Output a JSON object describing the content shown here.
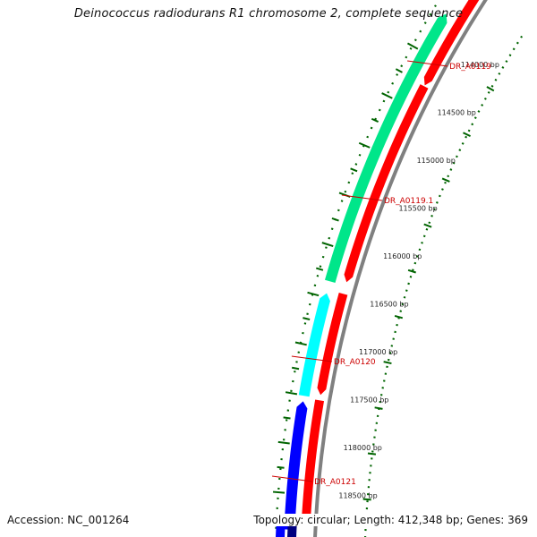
{
  "title": "Deinococcus radiodurans R1 chromosome 2, complete sequence",
  "footer": {
    "accession": "Accession: NC_001264",
    "summary": "Topology: circular; Length: 412,348 bp; Genes: 369"
  },
  "ticks": [
    {
      "label": "114000 bp"
    },
    {
      "label": "114500 bp"
    },
    {
      "label": "115000 bp"
    },
    {
      "label": "115500 bp"
    },
    {
      "label": "116000 bp"
    },
    {
      "label": "116500 bp"
    },
    {
      "label": "117000 bp"
    },
    {
      "label": "117500 bp"
    },
    {
      "label": "118000 bp"
    },
    {
      "label": "118500 bp"
    }
  ],
  "genes": [
    {
      "label": "DR_A0119",
      "color": "#00e68a"
    },
    {
      "label": "DR_A0119.1",
      "color": "#00e68a"
    },
    {
      "label": "DR_A0120",
      "color": "#00ffff"
    },
    {
      "label": "DR_A0121",
      "color": "#0000ff"
    }
  ],
  "colors": {
    "cds": "#ff0000",
    "backbone": "#808080",
    "tick_marks": "#006400",
    "label_lines": "#cc0000",
    "extra_gene": "#000080"
  }
}
